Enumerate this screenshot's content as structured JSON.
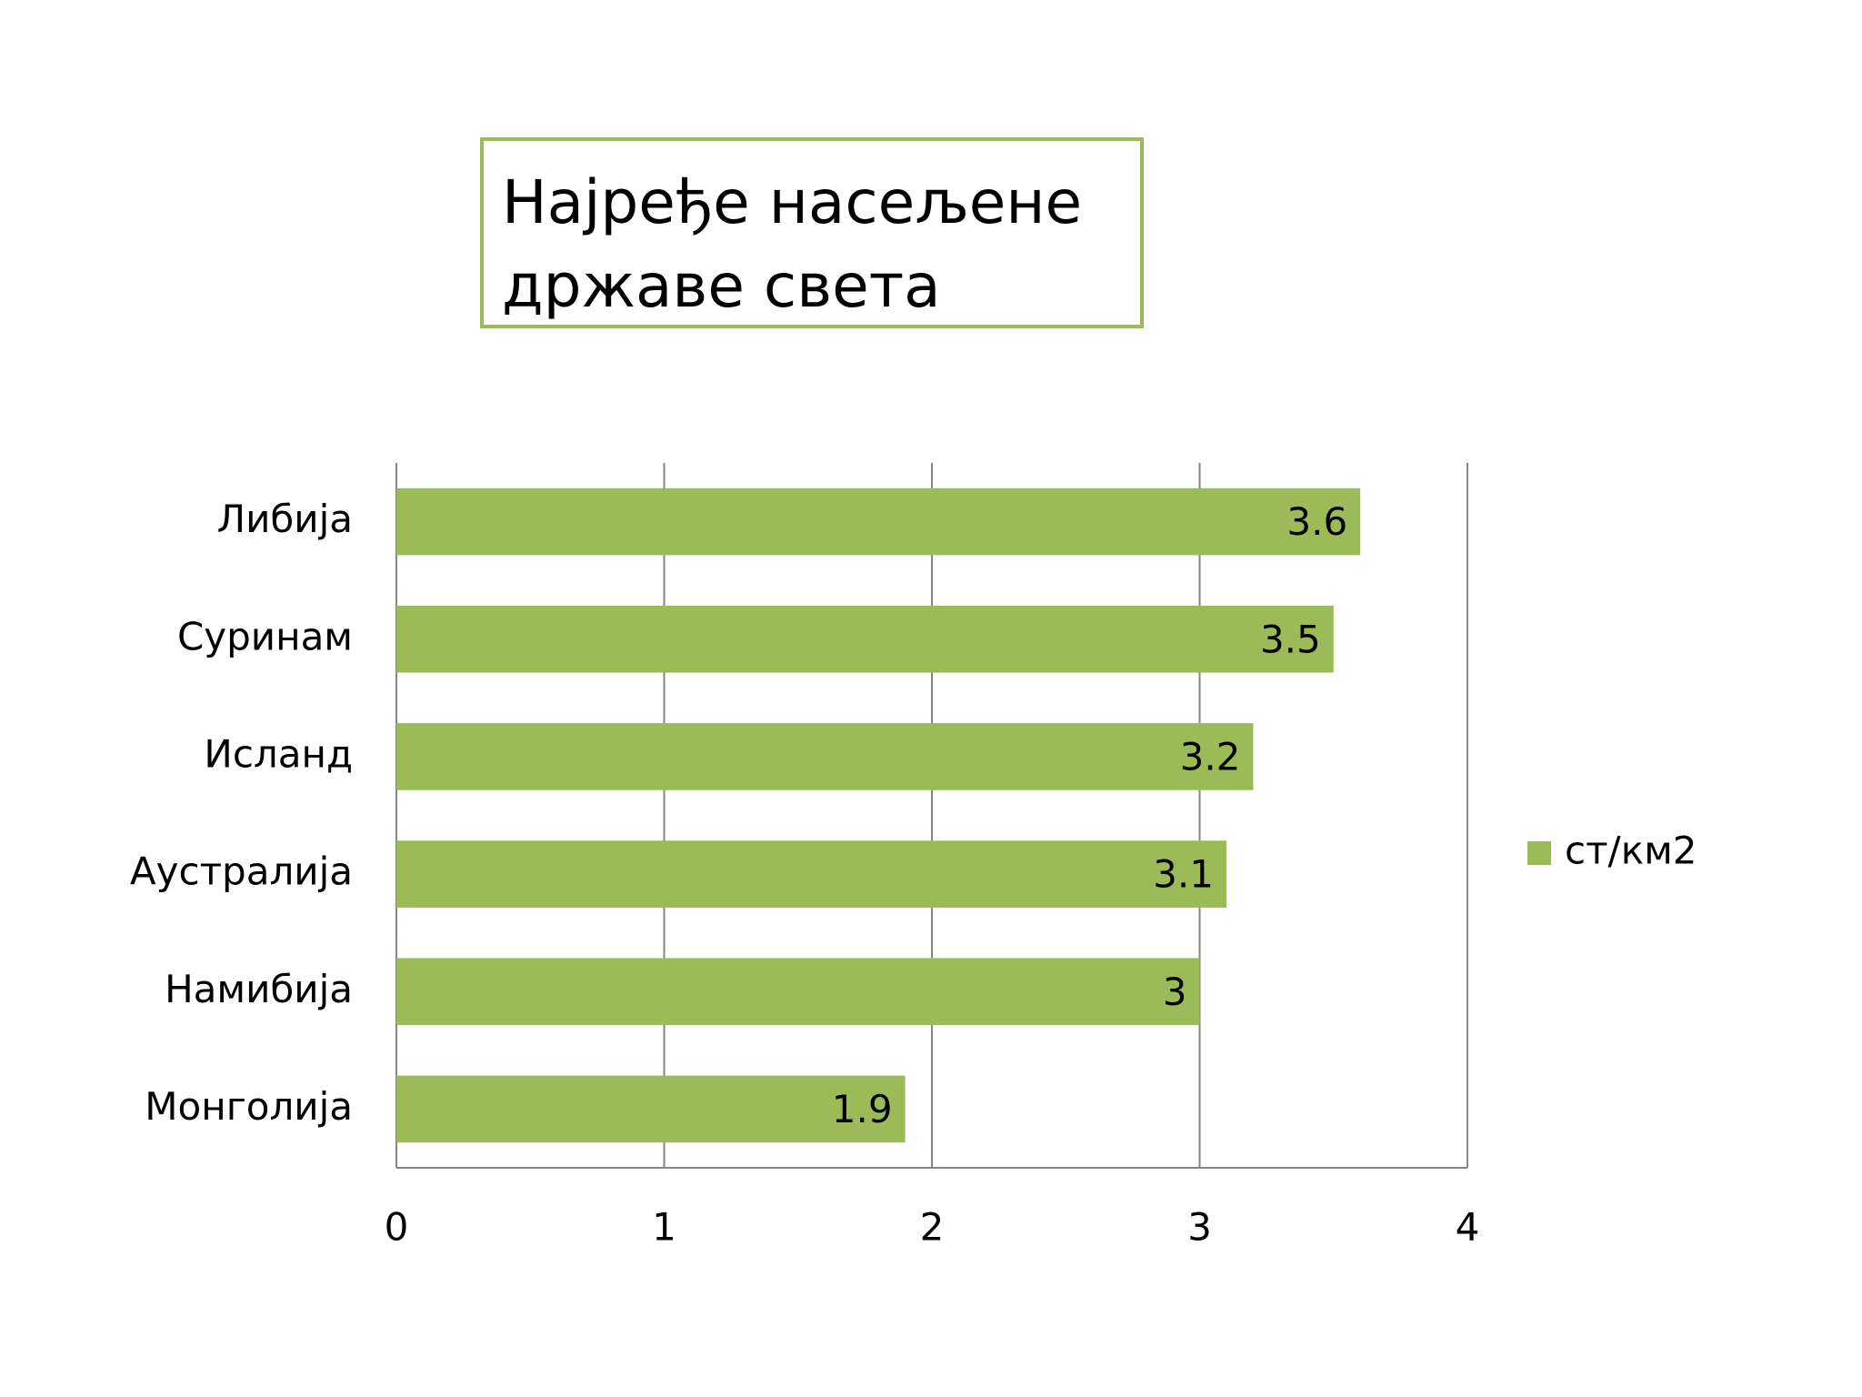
{
  "chart_data": {
    "type": "hbar",
    "title": "Најређе насељене државе света",
    "categories": [
      "Либија",
      "Суринам",
      "Исланд",
      "Аустралија",
      "Намибија",
      "Монголија"
    ],
    "series": [
      {
        "name": "ст/км2",
        "color": "#9bbb59",
        "values": [
          3.6,
          3.5,
          3.2,
          3.1,
          3,
          1.9
        ]
      }
    ],
    "xlim": [
      0,
      4
    ],
    "xticks": [
      0,
      1,
      2,
      3,
      4
    ],
    "grid": true,
    "legend": "right"
  }
}
